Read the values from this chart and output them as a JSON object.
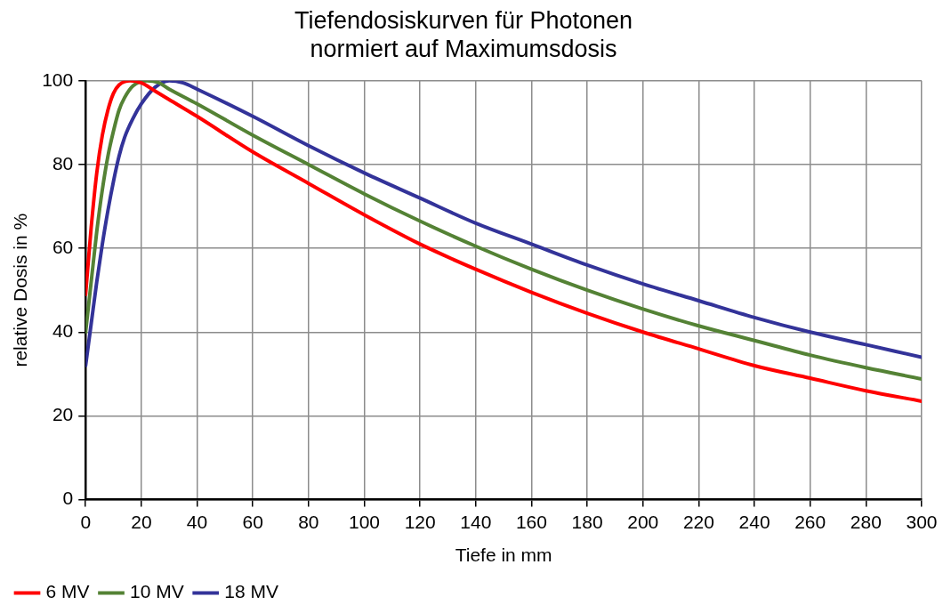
{
  "chart_data": {
    "type": "line",
    "title": [
      "Tiefendosiskurven für Photonen",
      "normiert auf Maximumsdosis"
    ],
    "xlabel": "Tiefe in mm",
    "ylabel": "relative Dosis in %",
    "xlim": [
      0,
      300
    ],
    "xticks": [
      0,
      20,
      40,
      60,
      80,
      100,
      120,
      140,
      160,
      180,
      200,
      220,
      240,
      260,
      280,
      300
    ],
    "ylim": [
      0,
      100
    ],
    "yticks": [
      0,
      20,
      40,
      60,
      80,
      100
    ],
    "grid": true,
    "legend": "bottom left",
    "marker": "none",
    "line_style": "solid",
    "series": [
      {
        "name": "6 MV",
        "color": "#ff0000",
        "x": [
          0,
          2,
          4,
          6,
          8,
          10,
          12,
          16,
          20,
          25,
          30,
          40,
          60,
          80,
          100,
          120,
          140,
          160,
          180,
          200,
          220,
          240,
          260,
          280,
          300
        ],
        "values": [
          49,
          65,
          78,
          87,
          93,
          97,
          99,
          100,
          99.5,
          97.5,
          95.5,
          91.5,
          83,
          75.5,
          68,
          61,
          55,
          49.5,
          44.5,
          40,
          36,
          32,
          29,
          26,
          23.5
        ]
      },
      {
        "name": "10 MV",
        "color": "#548235",
        "x": [
          0,
          2,
          4,
          6,
          8,
          10,
          12,
          14,
          17,
          22,
          26,
          30,
          40,
          60,
          80,
          100,
          120,
          140,
          160,
          180,
          200,
          220,
          240,
          260,
          280,
          300
        ],
        "values": [
          40,
          52,
          64,
          74,
          82,
          88,
          93,
          96,
          98.8,
          100,
          99.6,
          98,
          94.5,
          87,
          80,
          73,
          66.5,
          60.5,
          55,
          50,
          45.5,
          41.5,
          38,
          34.5,
          31.5,
          28.8
        ]
      },
      {
        "name": "18 MV",
        "color": "#333399",
        "x": [
          0,
          2,
          4,
          6,
          8,
          10,
          12,
          14,
          17,
          20,
          25,
          30,
          35,
          40,
          60,
          80,
          100,
          120,
          140,
          160,
          180,
          200,
          220,
          240,
          260,
          280,
          300
        ],
        "values": [
          32,
          42,
          52,
          61,
          69,
          76,
          82,
          86.5,
          91,
          94.5,
          98.5,
          100,
          99.5,
          98,
          91.5,
          84.5,
          78,
          72,
          66,
          61,
          56,
          51.5,
          47.5,
          43.5,
          40,
          37,
          34
        ]
      }
    ]
  }
}
